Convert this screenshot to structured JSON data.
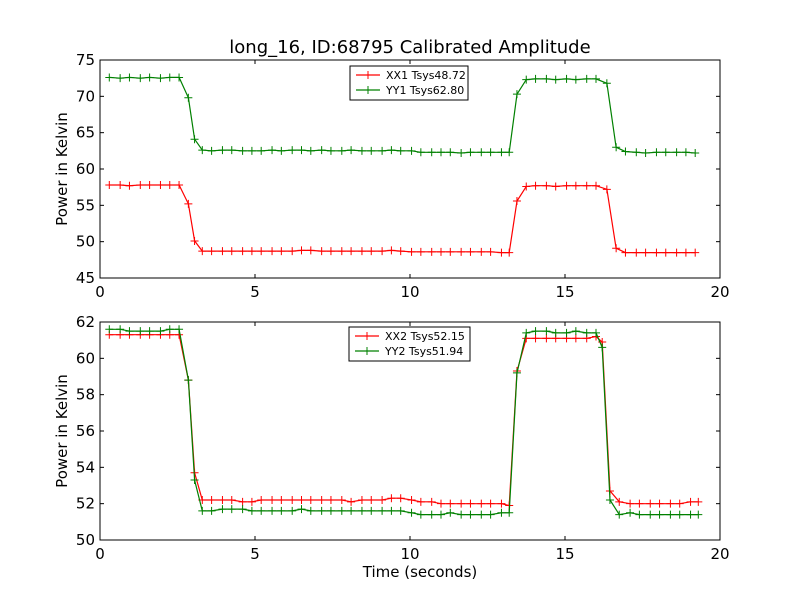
{
  "title": "long_16, ID:68795 Calibrated Amplitude",
  "chart_data": [
    {
      "type": "line",
      "xlabel": "",
      "ylabel": "Power in Kelvin",
      "xlim": [
        0,
        20
      ],
      "ylim": [
        45,
        75
      ],
      "xticks": [
        "0",
        "5",
        "10",
        "15",
        "20"
      ],
      "yticks": [
        "45",
        "50",
        "55",
        "60",
        "65",
        "70",
        "75"
      ],
      "legend_placement": "upper-center",
      "x": [
        0.3,
        0.65,
        0.95,
        1.3,
        1.6,
        1.95,
        2.25,
        2.55,
        2.85,
        3.05,
        3.3,
        3.6,
        3.95,
        4.25,
        4.6,
        4.9,
        5.2,
        5.55,
        5.85,
        6.2,
        6.5,
        6.8,
        7.15,
        7.45,
        7.8,
        8.1,
        8.45,
        8.75,
        9.1,
        9.4,
        9.7,
        10.05,
        10.35,
        10.7,
        11.0,
        11.3,
        11.65,
        11.95,
        12.3,
        12.6,
        12.95,
        13.2,
        13.45,
        13.75,
        14.05,
        14.4,
        14.7,
        15.05,
        15.35,
        15.7,
        16.0,
        16.35,
        16.65,
        16.95,
        17.3,
        17.6,
        17.95,
        18.25,
        18.6,
        18.9,
        19.2
      ],
      "series": [
        {
          "name": "XX1 Tsys48.72",
          "color": "#ff0000",
          "values": [
            57.8,
            57.8,
            57.7,
            57.8,
            57.8,
            57.8,
            57.8,
            57.8,
            55.2,
            50.1,
            48.7,
            48.7,
            48.7,
            48.7,
            48.7,
            48.7,
            48.7,
            48.7,
            48.7,
            48.7,
            48.8,
            48.8,
            48.7,
            48.7,
            48.7,
            48.7,
            48.7,
            48.7,
            48.7,
            48.8,
            48.7,
            48.6,
            48.6,
            48.6,
            48.6,
            48.6,
            48.6,
            48.6,
            48.6,
            48.6,
            48.5,
            48.5,
            55.6,
            57.6,
            57.7,
            57.7,
            57.6,
            57.7,
            57.7,
            57.7,
            57.7,
            57.2,
            49.1,
            48.5,
            48.5,
            48.5,
            48.5,
            48.5,
            48.5,
            48.5,
            48.5
          ]
        },
        {
          "name": "YY1 Tsys62.80",
          "color": "#008000",
          "values": [
            72.6,
            72.5,
            72.6,
            72.5,
            72.6,
            72.5,
            72.6,
            72.6,
            69.8,
            64.1,
            62.6,
            62.5,
            62.6,
            62.6,
            62.5,
            62.5,
            62.5,
            62.6,
            62.5,
            62.6,
            62.6,
            62.5,
            62.6,
            62.5,
            62.5,
            62.6,
            62.5,
            62.5,
            62.5,
            62.6,
            62.5,
            62.5,
            62.3,
            62.3,
            62.3,
            62.3,
            62.2,
            62.3,
            62.3,
            62.3,
            62.3,
            62.3,
            70.3,
            72.3,
            72.4,
            72.4,
            72.3,
            72.4,
            72.3,
            72.4,
            72.4,
            71.8,
            63.0,
            62.4,
            62.3,
            62.2,
            62.3,
            62.3,
            62.3,
            62.3,
            62.2
          ]
        }
      ]
    },
    {
      "type": "line",
      "xlabel": "Time (seconds)",
      "ylabel": "Power in Kelvin",
      "xlim": [
        0,
        20
      ],
      "ylim": [
        50,
        62
      ],
      "xticks": [
        "0",
        "5",
        "10",
        "15",
        "20"
      ],
      "yticks": [
        "50",
        "52",
        "54",
        "56",
        "58",
        "60",
        "62"
      ],
      "legend_placement": "upper-center",
      "x": [
        0.3,
        0.65,
        0.95,
        1.3,
        1.6,
        1.95,
        2.25,
        2.55,
        2.85,
        3.05,
        3.3,
        3.6,
        3.95,
        4.25,
        4.6,
        4.9,
        5.2,
        5.55,
        5.85,
        6.2,
        6.5,
        6.8,
        7.15,
        7.45,
        7.8,
        8.1,
        8.45,
        8.75,
        9.1,
        9.4,
        9.7,
        10.05,
        10.35,
        10.7,
        11.0,
        11.3,
        11.65,
        11.95,
        12.3,
        12.6,
        12.95,
        13.2,
        13.45,
        13.75,
        14.05,
        14.4,
        14.7,
        15.05,
        15.35,
        15.7,
        16.0,
        16.2,
        16.45,
        16.75,
        17.1,
        17.4,
        17.75,
        18.05,
        18.4,
        18.7,
        19.05,
        19.3
      ],
      "series": [
        {
          "name": "XX2 Tsys52.15",
          "color": "#ff0000",
          "values": [
            61.3,
            61.3,
            61.3,
            61.3,
            61.3,
            61.3,
            61.3,
            61.3,
            58.8,
            53.7,
            52.2,
            52.2,
            52.2,
            52.2,
            52.1,
            52.1,
            52.2,
            52.2,
            52.2,
            52.2,
            52.2,
            52.2,
            52.2,
            52.2,
            52.2,
            52.1,
            52.2,
            52.2,
            52.2,
            52.3,
            52.3,
            52.2,
            52.1,
            52.1,
            52.0,
            52.0,
            52.0,
            52.0,
            52.0,
            52.0,
            52.0,
            51.9,
            59.3,
            61.1,
            61.1,
            61.1,
            61.1,
            61.1,
            61.1,
            61.1,
            61.2,
            60.9,
            52.7,
            52.1,
            52.0,
            52.0,
            52.0,
            52.0,
            52.0,
            52.0,
            52.1,
            52.1
          ]
        },
        {
          "name": "YY2 Tsys51.94",
          "color": "#008000",
          "values": [
            61.6,
            61.6,
            61.5,
            61.5,
            61.5,
            61.5,
            61.6,
            61.6,
            58.8,
            53.3,
            51.6,
            51.6,
            51.7,
            51.7,
            51.7,
            51.6,
            51.6,
            51.6,
            51.6,
            51.6,
            51.7,
            51.6,
            51.6,
            51.6,
            51.6,
            51.6,
            51.6,
            51.6,
            51.6,
            51.6,
            51.6,
            51.5,
            51.4,
            51.4,
            51.4,
            51.5,
            51.4,
            51.4,
            51.4,
            51.4,
            51.5,
            51.5,
            59.2,
            61.4,
            61.5,
            61.5,
            61.4,
            61.4,
            61.5,
            61.4,
            61.4,
            60.6,
            52.2,
            51.4,
            51.5,
            51.4,
            51.4,
            51.4,
            51.4,
            51.4,
            51.4,
            51.4
          ]
        }
      ]
    }
  ]
}
